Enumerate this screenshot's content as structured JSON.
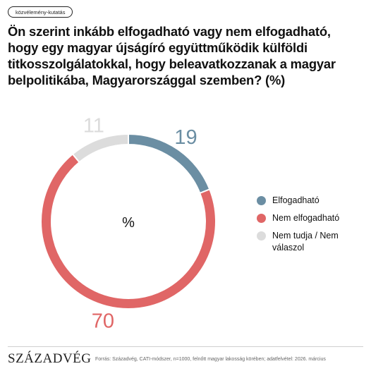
{
  "tag": "közvélemény-kutatás",
  "title": "Ön szerint inkább elfogadható vagy nem elfogadható, hogy egy magyar újságíró együttműködik külföldi titkosszolgálatokkal, hogy beleavatkozzanak a magyar belpolitikába, Magyarországgal szemben? (%)",
  "chart_data": {
    "type": "pie",
    "center_label": "%",
    "slices": [
      {
        "label": "Elfogadható",
        "value": 19,
        "color": "#6b8ea3"
      },
      {
        "label": "Nem elfogadható",
        "value": 70,
        "color": "#e06666"
      },
      {
        "label": "Nem tudja / Nem válaszol",
        "value": 11,
        "color": "#dcdcdc"
      }
    ],
    "legend_position": "right"
  },
  "footer": {
    "logo": "SZÁZADVÉG",
    "source": "Forrás: Századvég, CATI-módszer, n=1000, felnőtt magyar lakosság körében; adatfelvétel: 2026. március"
  }
}
